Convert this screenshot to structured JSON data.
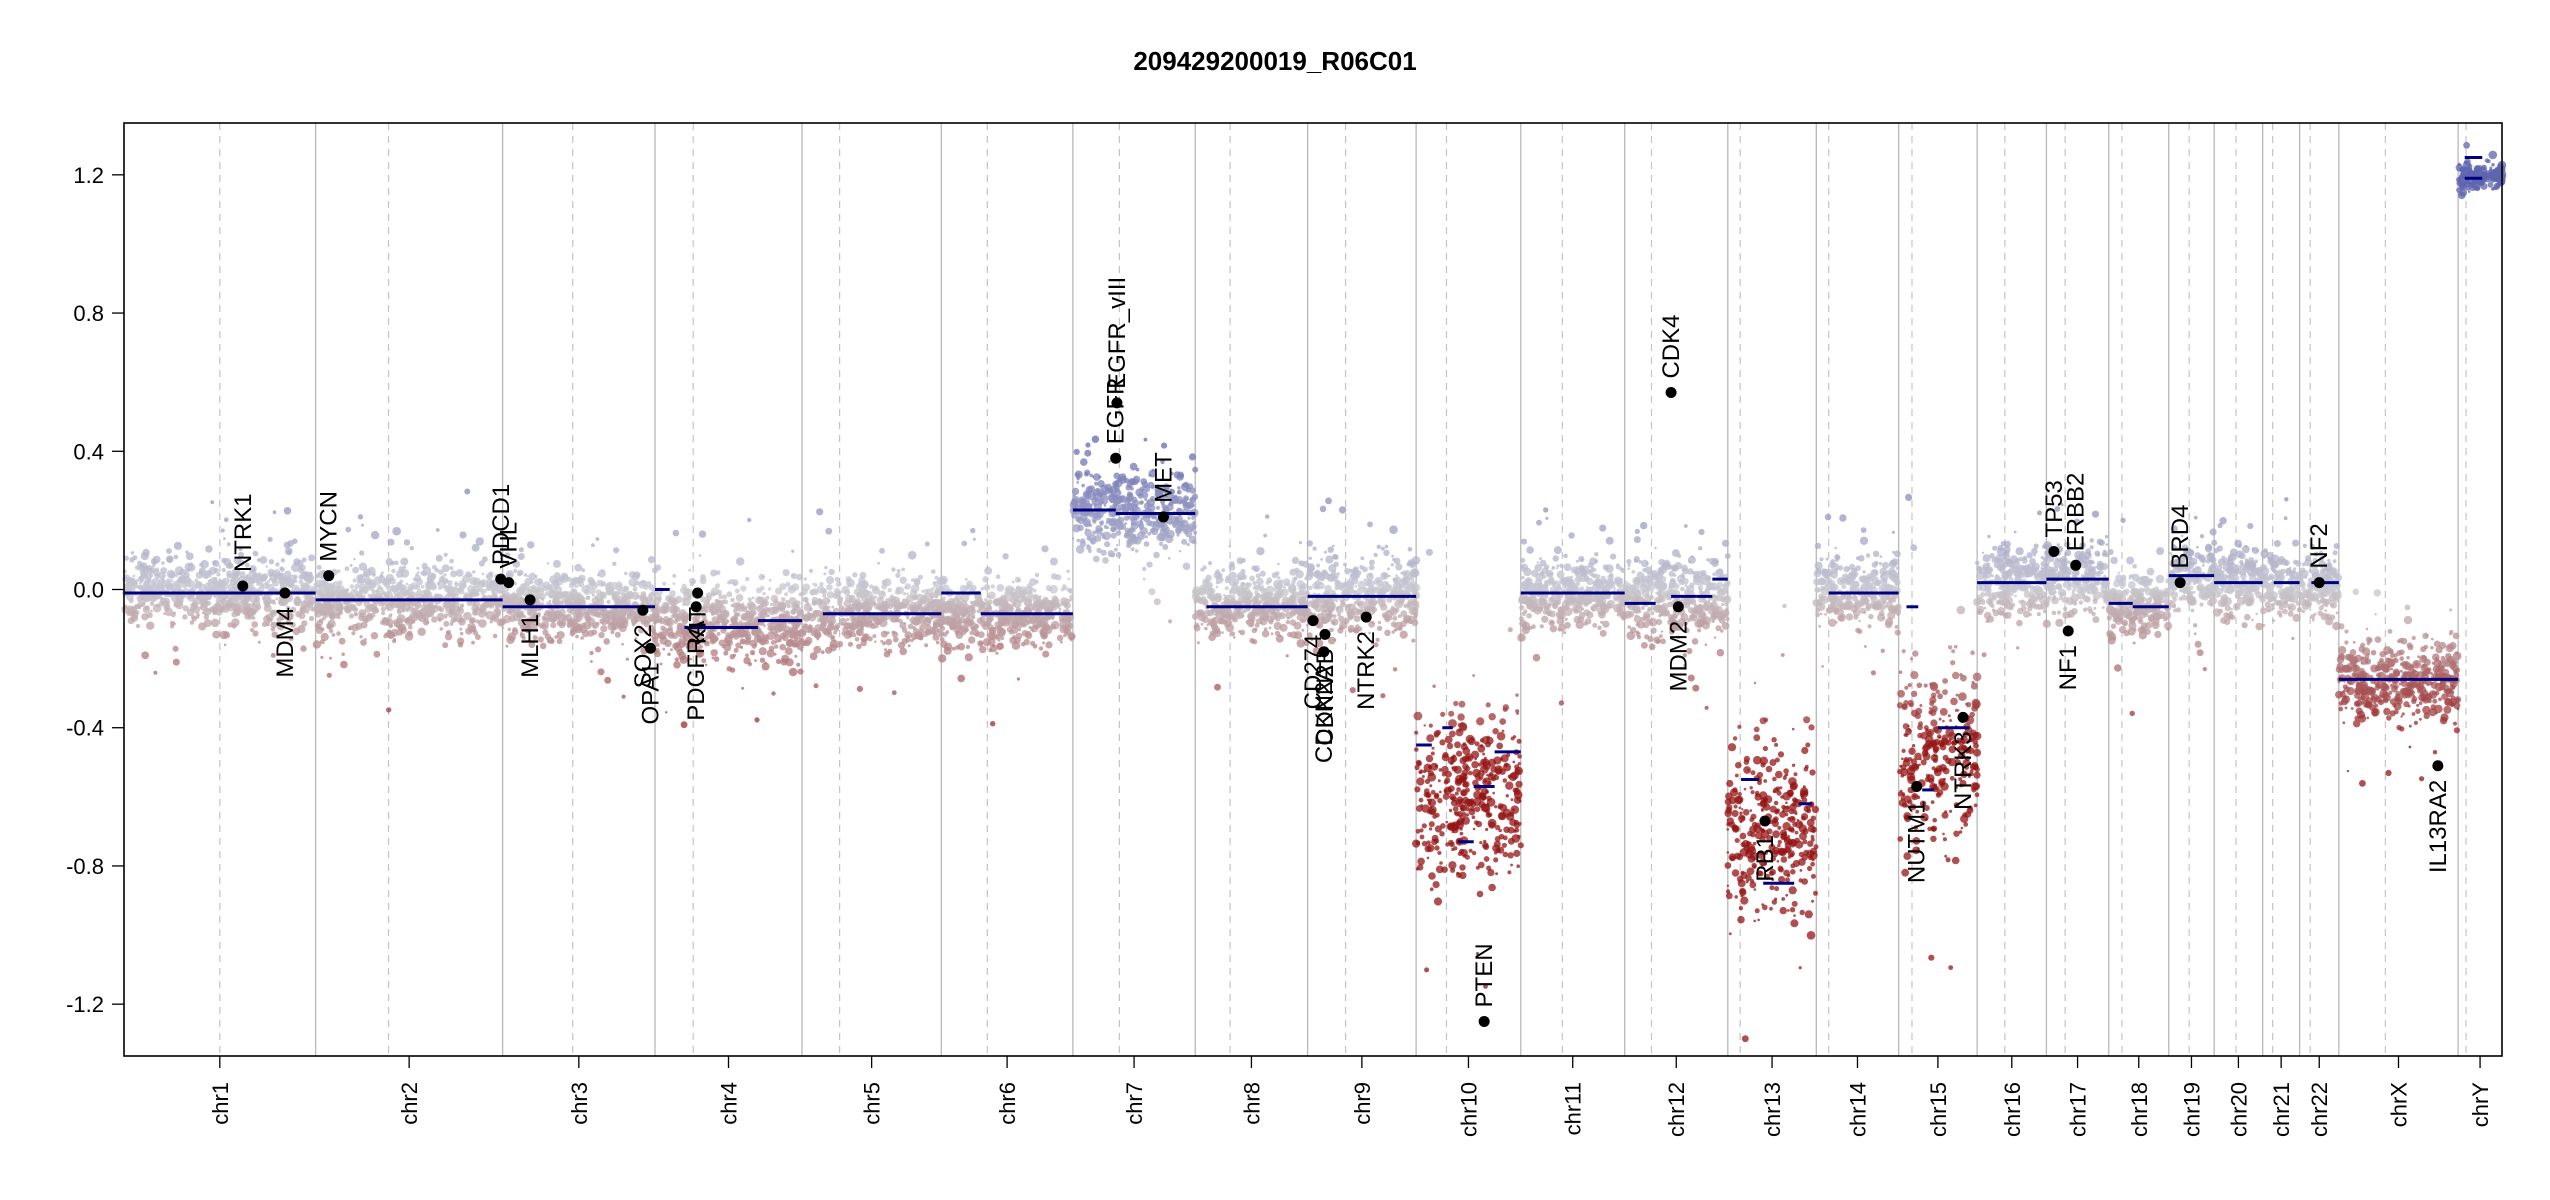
{
  "chart_data": {
    "type": "scatter",
    "title": "209429200019_R06C01",
    "xlabel": "",
    "ylabel": "",
    "ylim": [
      -1.35,
      1.35
    ],
    "yticks": [
      -1.2,
      -0.8,
      -0.4,
      0.0,
      0.4,
      0.8,
      1.2
    ],
    "ytick_labels": [
      "-1.2",
      "-0.8",
      "-0.4",
      "0.0",
      "0.4",
      "0.8",
      "1.2"
    ],
    "grid": false,
    "colors": {
      "gain": "#6b6fb3",
      "neutral": "#c8c8d0",
      "loss": "#9b1414",
      "segment": "#000080",
      "gene": "#000000"
    },
    "chromosomes": [
      {
        "name": "chr1",
        "size": 249,
        "centromere": 0.5,
        "level": -0.01,
        "noise": 0.05
      },
      {
        "name": "chr2",
        "size": 243,
        "centromere": 0.39,
        "level": -0.03,
        "noise": 0.05
      },
      {
        "name": "chr3",
        "size": 198,
        "centromere": 0.46,
        "level": -0.05,
        "noise": 0.05
      },
      {
        "name": "chr4",
        "size": 191,
        "centromere": 0.26,
        "level": -0.1,
        "noise": 0.06
      },
      {
        "name": "chr5",
        "size": 181,
        "centromere": 0.27,
        "level": -0.07,
        "noise": 0.05
      },
      {
        "name": "chr6",
        "size": 171,
        "centromere": 0.35,
        "level": -0.07,
        "noise": 0.05
      },
      {
        "name": "chr7",
        "size": 159,
        "centromere": 0.38,
        "level": 0.22,
        "noise": 0.06
      },
      {
        "name": "chr8",
        "size": 146,
        "centromere": 0.31,
        "level": -0.04,
        "noise": 0.05
      },
      {
        "name": "chr9",
        "size": 141,
        "centromere": 0.35,
        "level": -0.03,
        "noise": 0.06
      },
      {
        "name": "chr10",
        "size": 136,
        "centromere": 0.29,
        "level": -0.6,
        "noise": 0.12
      },
      {
        "name": "chr11",
        "size": 135,
        "centromere": 0.4,
        "level": -0.01,
        "noise": 0.05
      },
      {
        "name": "chr12",
        "size": 134,
        "centromere": 0.26,
        "level": -0.03,
        "noise": 0.06
      },
      {
        "name": "chr13",
        "size": 115,
        "centromere": 0.14,
        "level": -0.7,
        "noise": 0.13
      },
      {
        "name": "chr14",
        "size": 107,
        "centromere": 0.15,
        "level": -0.01,
        "noise": 0.05
      },
      {
        "name": "chr15",
        "size": 102,
        "centromere": 0.17,
        "level": -0.5,
        "noise": 0.13
      },
      {
        "name": "chr16",
        "size": 90,
        "centromere": 0.4,
        "level": 0.02,
        "noise": 0.05
      },
      {
        "name": "chr17",
        "size": 81,
        "centromere": 0.3,
        "level": 0.03,
        "noise": 0.05
      },
      {
        "name": "chr18",
        "size": 78,
        "centromere": 0.22,
        "level": -0.04,
        "noise": 0.05
      },
      {
        "name": "chr19",
        "size": 59,
        "centromere": 0.45,
        "level": 0.03,
        "noise": 0.05
      },
      {
        "name": "chr20",
        "size": 63,
        "centromere": 0.45,
        "level": 0.02,
        "noise": 0.05
      },
      {
        "name": "chr21",
        "size": 48,
        "centromere": 0.27,
        "level": 0.01,
        "noise": 0.05
      },
      {
        "name": "chr22",
        "size": 51,
        "centromere": 0.27,
        "level": 0.01,
        "noise": 0.05
      },
      {
        "name": "chrX",
        "size": 155,
        "centromere": 0.39,
        "level": -0.27,
        "noise": 0.06
      },
      {
        "name": "chrY",
        "size": 57,
        "centromere": 0.18,
        "level": 1.19,
        "noise": 0.02
      }
    ],
    "segments": [
      {
        "chr": "chr1",
        "from": 0.0,
        "to": 1.0,
        "value": -0.01
      },
      {
        "chr": "chr2",
        "from": 0.0,
        "to": 1.0,
        "value": -0.03
      },
      {
        "chr": "chr3",
        "from": 0.0,
        "to": 1.0,
        "value": -0.05
      },
      {
        "chr": "chr4",
        "from": 0.0,
        "to": 0.1,
        "value": 0.0
      },
      {
        "chr": "chr4",
        "from": 0.2,
        "to": 0.7,
        "value": -0.11
      },
      {
        "chr": "chr4",
        "from": 0.7,
        "to": 1.0,
        "value": -0.09
      },
      {
        "chr": "chr5",
        "from": 0.15,
        "to": 1.0,
        "value": -0.07
      },
      {
        "chr": "chr6",
        "from": 0.0,
        "to": 0.3,
        "value": -0.01
      },
      {
        "chr": "chr6",
        "from": 0.3,
        "to": 1.0,
        "value": -0.07
      },
      {
        "chr": "chr7",
        "from": 0.0,
        "to": 0.35,
        "value": 0.23
      },
      {
        "chr": "chr7",
        "from": 0.35,
        "to": 1.0,
        "value": 0.22
      },
      {
        "chr": "chr8",
        "from": 0.1,
        "to": 1.0,
        "value": -0.05
      },
      {
        "chr": "chr9",
        "from": 0.0,
        "to": 1.0,
        "value": -0.02
      },
      {
        "chr": "chr10",
        "from": 0.0,
        "to": 0.15,
        "value": -0.45
      },
      {
        "chr": "chr10",
        "from": 0.25,
        "to": 0.35,
        "value": -0.4
      },
      {
        "chr": "chr10",
        "from": 0.4,
        "to": 0.55,
        "value": -0.73
      },
      {
        "chr": "chr10",
        "from": 0.55,
        "to": 0.75,
        "value": -0.57
      },
      {
        "chr": "chr10",
        "from": 0.75,
        "to": 1.0,
        "value": -0.47
      },
      {
        "chr": "chr11",
        "from": 0.0,
        "to": 1.0,
        "value": -0.01
      },
      {
        "chr": "chr12",
        "from": 0.0,
        "to": 0.3,
        "value": -0.04
      },
      {
        "chr": "chr12",
        "from": 0.45,
        "to": 0.7,
        "value": -0.02
      },
      {
        "chr": "chr12",
        "from": 0.7,
        "to": 0.85,
        "value": -0.02
      },
      {
        "chr": "chr12",
        "from": 0.85,
        "to": 1.0,
        "value": 0.03
      },
      {
        "chr": "chr13",
        "from": 0.15,
        "to": 0.35,
        "value": -0.55
      },
      {
        "chr": "chr13",
        "from": 0.4,
        "to": 0.75,
        "value": -0.85
      },
      {
        "chr": "chr13",
        "from": 0.8,
        "to": 0.95,
        "value": -0.62
      },
      {
        "chr": "chr14",
        "from": 0.15,
        "to": 1.0,
        "value": -0.01
      },
      {
        "chr": "chr15",
        "from": 0.1,
        "to": 0.25,
        "value": -0.05
      },
      {
        "chr": "chr15",
        "from": 0.3,
        "to": 0.45,
        "value": -0.58
      },
      {
        "chr": "chr15",
        "from": 0.5,
        "to": 0.9,
        "value": -0.4
      },
      {
        "chr": "chr16",
        "from": 0.0,
        "to": 1.0,
        "value": 0.02
      },
      {
        "chr": "chr17",
        "from": 0.0,
        "to": 1.0,
        "value": 0.03
      },
      {
        "chr": "chr18",
        "from": 0.0,
        "to": 0.4,
        "value": -0.04
      },
      {
        "chr": "chr18",
        "from": 0.4,
        "to": 1.0,
        "value": -0.05
      },
      {
        "chr": "chr19",
        "from": 0.0,
        "to": 1.0,
        "value": 0.04
      },
      {
        "chr": "chr20",
        "from": 0.0,
        "to": 1.0,
        "value": 0.02
      },
      {
        "chr": "chr21",
        "from": 0.3,
        "to": 1.0,
        "value": 0.02
      },
      {
        "chr": "chr22",
        "from": 0.3,
        "to": 1.0,
        "value": 0.02
      },
      {
        "chr": "chrX",
        "from": 0.0,
        "to": 1.0,
        "value": -0.26
      },
      {
        "chr": "chrY",
        "from": 0.15,
        "to": 0.55,
        "value": 1.19
      },
      {
        "chr": "chrY",
        "from": 0.15,
        "to": 0.55,
        "value": 1.25
      }
    ],
    "genes": [
      {
        "name": "NTRK1",
        "chr": "chr1",
        "pos": 0.62,
        "value": 0.01,
        "label": "above"
      },
      {
        "name": "MDM4",
        "chr": "chr1",
        "pos": 0.84,
        "value": -0.01,
        "label": "below"
      },
      {
        "name": "MYCN",
        "chr": "chr2",
        "pos": 0.07,
        "value": 0.04,
        "label": "above"
      },
      {
        "name": "PDCD1",
        "chr": "chr2",
        "pos": 0.99,
        "value": 0.03,
        "label": "above"
      },
      {
        "name": "VHL",
        "chr": "chr3",
        "pos": 0.04,
        "value": 0.02,
        "label": "above"
      },
      {
        "name": "MLH1",
        "chr": "chr3",
        "pos": 0.18,
        "value": -0.03,
        "label": "below"
      },
      {
        "name": "SOX2",
        "chr": "chr3",
        "pos": 0.92,
        "value": -0.06,
        "label": "below"
      },
      {
        "name": "OPA1",
        "chr": "chr3",
        "pos": 0.97,
        "value": -0.17,
        "label": "below"
      },
      {
        "name": "PDGFRA",
        "chr": "chr4",
        "pos": 0.28,
        "value": -0.05,
        "label": "below"
      },
      {
        "name": "KIT",
        "chr": "chr4",
        "pos": 0.29,
        "value": -0.01,
        "label": "below"
      },
      {
        "name": "EGFR",
        "chr": "chr7",
        "pos": 0.35,
        "value": 0.38,
        "label": "above"
      },
      {
        "name": "EGFR_vIII",
        "chr": "chr7",
        "pos": 0.36,
        "value": 0.54,
        "label": "above"
      },
      {
        "name": "MET",
        "chr": "chr7",
        "pos": 0.74,
        "value": 0.21,
        "label": "above"
      },
      {
        "name": "CD274",
        "chr": "chr9",
        "pos": 0.05,
        "value": -0.09,
        "label": "below"
      },
      {
        "name": "CDKN2A",
        "chr": "chr9",
        "pos": 0.15,
        "value": -0.18,
        "label": "below"
      },
      {
        "name": "CDKN2B",
        "chr": "chr9",
        "pos": 0.16,
        "value": -0.13,
        "label": "below"
      },
      {
        "name": "NTRK2",
        "chr": "chr9",
        "pos": 0.54,
        "value": -0.08,
        "label": "below"
      },
      {
        "name": "PTEN",
        "chr": "chr10",
        "pos": 0.65,
        "value": -1.25,
        "label": "above"
      },
      {
        "name": "CDK4",
        "chr": "chr12",
        "pos": 0.45,
        "value": 0.57,
        "label": "above"
      },
      {
        "name": "MDM2",
        "chr": "chr12",
        "pos": 0.52,
        "value": -0.05,
        "label": "below"
      },
      {
        "name": "RB1",
        "chr": "chr13",
        "pos": 0.42,
        "value": -0.67,
        "label": "below"
      },
      {
        "name": "NUTM1",
        "chr": "chr15",
        "pos": 0.23,
        "value": -0.57,
        "label": "below"
      },
      {
        "name": "NTRK3",
        "chr": "chr15",
        "pos": 0.82,
        "value": -0.37,
        "label": "below"
      },
      {
        "name": "TP53",
        "chr": "chr17",
        "pos": 0.12,
        "value": 0.11,
        "label": "above"
      },
      {
        "name": "NF1",
        "chr": "chr17",
        "pos": 0.35,
        "value": -0.12,
        "label": "below"
      },
      {
        "name": "ERBB2",
        "chr": "chr17",
        "pos": 0.47,
        "value": 0.07,
        "label": "above"
      },
      {
        "name": "BRD4",
        "chr": "chr19",
        "pos": 0.25,
        "value": 0.02,
        "label": "above"
      },
      {
        "name": "NF2",
        "chr": "chr22",
        "pos": 0.5,
        "value": 0.02,
        "label": "above"
      },
      {
        "name": "IL13RA2",
        "chr": "chrX",
        "pos": 0.83,
        "value": -0.51,
        "label": "below"
      }
    ]
  }
}
